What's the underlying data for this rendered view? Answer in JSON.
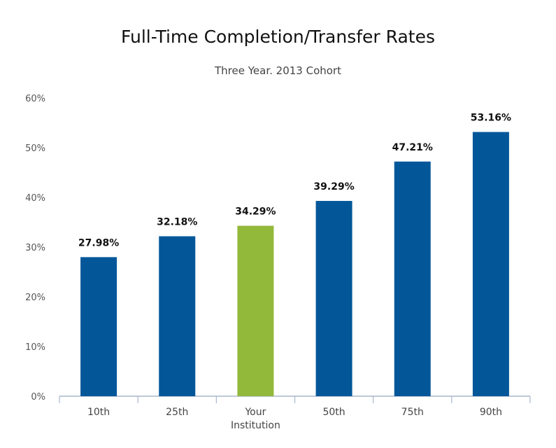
{
  "chart_data": {
    "type": "bar",
    "title": "Full-Time Completion/Transfer Rates",
    "subtitle": "Three Year. 2013 Cohort",
    "categories": [
      "10th",
      "25th",
      "Your\nInstitution",
      "50th",
      "75th",
      "90th"
    ],
    "values": [
      27.98,
      32.18,
      34.29,
      39.29,
      47.21,
      53.16
    ],
    "data_labels": [
      "27.98%",
      "32.18%",
      "34.29%",
      "39.29%",
      "47.21%",
      "53.16%"
    ],
    "highlight_index": 2,
    "ylim": [
      0,
      60
    ],
    "yticks": [
      0,
      10,
      20,
      30,
      40,
      50,
      60
    ],
    "ytick_labels": [
      "0%",
      "10%",
      "20%",
      "30%",
      "40%",
      "50%",
      "60%"
    ],
    "xlabel": "",
    "ylabel": "",
    "grid": false,
    "colors": {
      "bar": "#035799",
      "highlight": "#93b93a",
      "axis": "#a9b6cc"
    }
  }
}
